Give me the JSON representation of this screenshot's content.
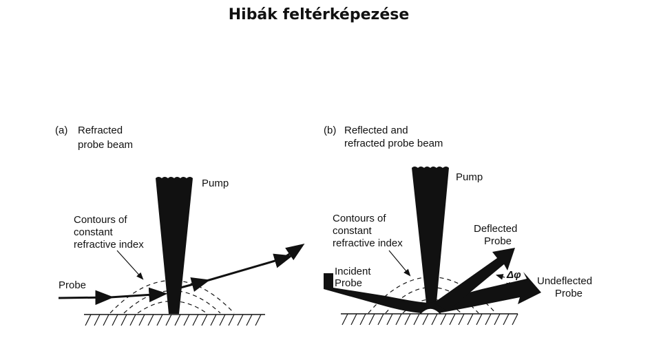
{
  "header": {
    "title": "Hibák feltérképezése"
  },
  "panels": [
    {
      "tag": "(a)",
      "caption": [
        "Refracted",
        "probe beam"
      ],
      "pump": "Pump",
      "contours": [
        "Contours of",
        "constant",
        "refractive index"
      ],
      "probe": [
        "Probe"
      ]
    },
    {
      "tag": "(b)",
      "caption": [
        "Reflected and",
        "refracted probe beam"
      ],
      "pump": "Pump",
      "contours": [
        "Contours of",
        "constant",
        "refractive index"
      ],
      "probe": [
        "Incident",
        "Probe"
      ],
      "deflected": [
        "Deflected",
        "Probe"
      ],
      "angle": "Δφ",
      "undeflected": [
        "Undeflected",
        "Probe"
      ]
    }
  ]
}
